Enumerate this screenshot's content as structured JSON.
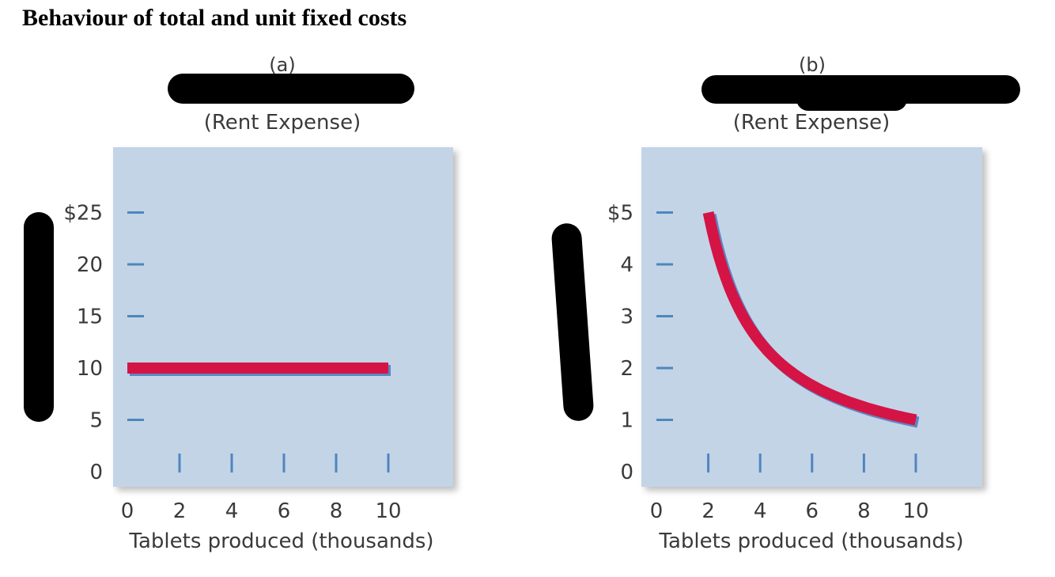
{
  "page": {
    "title": "Behaviour of total and unit fixed costs"
  },
  "colors": {
    "plot_bg": "#c3d4e7",
    "tick": "#4f86bd",
    "line": "#d41445",
    "line_shadow": "#5f86c2",
    "redaction": "#000000"
  },
  "chart_data": [
    {
      "type": "line",
      "panel_label": "(a)",
      "title": "",
      "subtitle": "(Rent Expense)",
      "xlabel": "Tablets produced (thousands)",
      "ylabel": "",
      "x_ticks": [
        "0",
        "2",
        "4",
        "6",
        "8",
        "10"
      ],
      "y_ticks": [
        "$25",
        "20",
        "15",
        "10",
        "5",
        "0"
      ],
      "xlim": [
        0,
        12
      ],
      "ylim": [
        0,
        25
      ],
      "grid": false,
      "series": [
        {
          "x": [
            0,
            2,
            4,
            6,
            8,
            10
          ],
          "y": [
            10,
            10,
            10,
            10,
            10,
            10
          ]
        }
      ]
    },
    {
      "type": "line",
      "panel_label": "(b)",
      "title": "",
      "subtitle": "(Rent Expense)",
      "xlabel": "Tablets produced (thousands)",
      "ylabel": "",
      "x_ticks": [
        "0",
        "2",
        "4",
        "6",
        "8",
        "10"
      ],
      "y_ticks": [
        "$5",
        "4",
        "3",
        "2",
        "1",
        "0"
      ],
      "xlim": [
        0,
        12
      ],
      "ylim": [
        0,
        5
      ],
      "grid": false,
      "series": [
        {
          "x": [
            2,
            3,
            4,
            5,
            6,
            7,
            8,
            9,
            10
          ],
          "y": [
            5,
            3.33,
            2.5,
            2,
            1.67,
            1.43,
            1.25,
            1.11,
            1
          ]
        }
      ]
    }
  ]
}
